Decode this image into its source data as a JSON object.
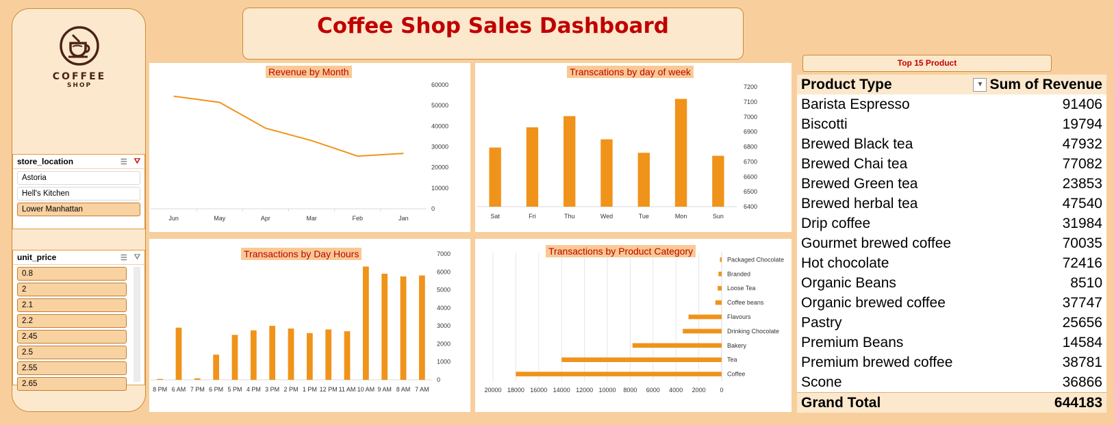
{
  "header": {
    "title": "Coffee Shop Sales Dashboard"
  },
  "logo": {
    "text": "COFFEE",
    "sub": "SHOP"
  },
  "slicers": {
    "store_location": {
      "title": "store_location",
      "items": [
        "Astoria",
        "Hell's Kitchen",
        "Lower Manhattan"
      ],
      "selected": "Lower Manhattan"
    },
    "unit_price": {
      "title": "unit_price",
      "items": [
        "0.8",
        "2",
        "2.1",
        "2.2",
        "2.45",
        "2.5",
        "2.55",
        "2.65"
      ]
    }
  },
  "top15": {
    "title": "Top 15 Product"
  },
  "product_table": {
    "col1": "Product Type",
    "col2": "Sum of Revenue",
    "rows": [
      {
        "name": "Barista Espresso",
        "value": "91406"
      },
      {
        "name": "Biscotti",
        "value": "19794"
      },
      {
        "name": "Brewed Black tea",
        "value": "47932"
      },
      {
        "name": "Brewed Chai tea",
        "value": "77082"
      },
      {
        "name": "Brewed Green tea",
        "value": "23853"
      },
      {
        "name": "Brewed herbal tea",
        "value": "47540"
      },
      {
        "name": "Drip coffee",
        "value": "31984"
      },
      {
        "name": "Gourmet brewed coffee",
        "value": "70035"
      },
      {
        "name": "Hot chocolate",
        "value": "72416"
      },
      {
        "name": "Organic Beans",
        "value": "8510"
      },
      {
        "name": "Organic brewed coffee",
        "value": "37747"
      },
      {
        "name": "Pastry",
        "value": "25656"
      },
      {
        "name": "Premium Beans",
        "value": "14584"
      },
      {
        "name": "Premium brewed coffee",
        "value": "38781"
      },
      {
        "name": "Scone",
        "value": "36866"
      }
    ],
    "total_label": "Grand Total",
    "total_value": "644183"
  },
  "colors": {
    "accent": "#f0931a",
    "title_red": "#c00000",
    "background": "#f8cf9c"
  },
  "chart_data": [
    {
      "type": "line",
      "title": "Revenue by Month",
      "categories": [
        "Jun",
        "May",
        "Apr",
        "Mar",
        "Feb",
        "Jan"
      ],
      "values": [
        54500,
        51500,
        39000,
        33000,
        25500,
        26800
      ],
      "yticks": [
        0,
        10000,
        20000,
        30000,
        40000,
        50000,
        60000
      ],
      "ylim": [
        0,
        60000
      ]
    },
    {
      "type": "bar",
      "title": "Transcations by day of week",
      "categories": [
        "Sat",
        "Fri",
        "Thu",
        "Wed",
        "Tue",
        "Mon",
        "Sun"
      ],
      "values": [
        6795,
        6930,
        7005,
        6850,
        6760,
        7120,
        6740
      ],
      "yticks": [
        6400,
        6500,
        6600,
        6700,
        6800,
        6900,
        7000,
        7100,
        7200
      ],
      "ylim": [
        6400,
        7200
      ]
    },
    {
      "type": "bar",
      "title": "Transactions by Day Hours",
      "categories": [
        "8 PM",
        "6 AM",
        "7 PM",
        "6 PM",
        "5 PM",
        "4 PM",
        "3 PM",
        "2 PM",
        "1 PM",
        "12 PM",
        "11 AM",
        "10 AM",
        "9 AM",
        "8 AM",
        "7 AM"
      ],
      "values": [
        50,
        2900,
        80,
        1400,
        2500,
        2750,
        3000,
        2850,
        2600,
        2800,
        2700,
        6300,
        5900,
        5750,
        5800
      ],
      "yticks": [
        0,
        1000,
        2000,
        3000,
        4000,
        5000,
        6000,
        7000
      ],
      "ylim": [
        0,
        7000
      ]
    },
    {
      "type": "bar",
      "orientation": "horizontal",
      "title": "Transactions by Product Category",
      "categories": [
        "Packaged Chocolate",
        "Branded",
        "Loose Tea",
        "Coffee beans",
        "Flavours",
        "Drinking Chocolate",
        "Bakery",
        "Tea",
        "Coffee"
      ],
      "values": [
        150,
        280,
        350,
        550,
        2900,
        3400,
        7800,
        14000,
        18000
      ],
      "xticks": [
        20000,
        18000,
        16000,
        14000,
        12000,
        10000,
        8000,
        6000,
        4000,
        2000,
        0
      ],
      "xlim": [
        0,
        20000
      ]
    }
  ]
}
